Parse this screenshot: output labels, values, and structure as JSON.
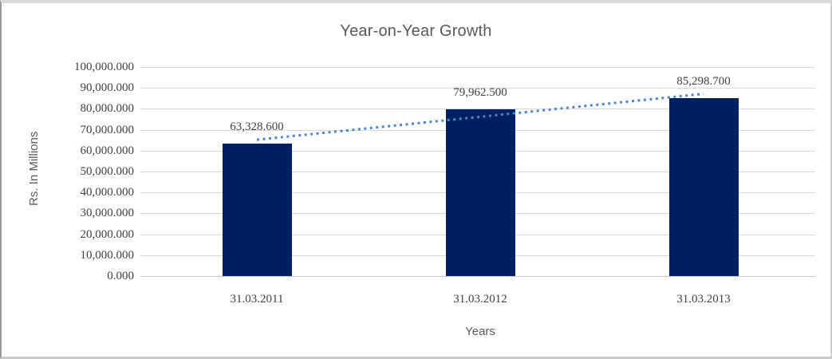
{
  "chart_data": {
    "type": "bar",
    "title": "Year-on-Year Growth",
    "xlabel": "Years",
    "ylabel": "Rs. In Millions",
    "categories": [
      "31.03.2011",
      "31.03.2012",
      "31.03.2013"
    ],
    "values": [
      63328.6,
      79962.5,
      85298.7
    ],
    "data_labels": [
      "63,328.600",
      "79,962.500",
      "85,298.700"
    ],
    "ylim": [
      0,
      100000
    ],
    "ytick_step": 10000,
    "ytick_labels": [
      "0.000",
      "10,000.000",
      "20,000.000",
      "30,000.000",
      "40,000.000",
      "50,000.000",
      "60,000.000",
      "70,000.000",
      "80,000.000",
      "90,000.000",
      "100,000.000"
    ],
    "grid": true,
    "legend": "none",
    "trendline": {
      "type": "linear",
      "style": "dotted",
      "color": "#4a86c8"
    },
    "colors": {
      "bar": "#002060",
      "grid": "#d9d9d9",
      "axis_line": "#c9c9c9",
      "title_text": "#595959",
      "tick_text": "#404040"
    }
  }
}
